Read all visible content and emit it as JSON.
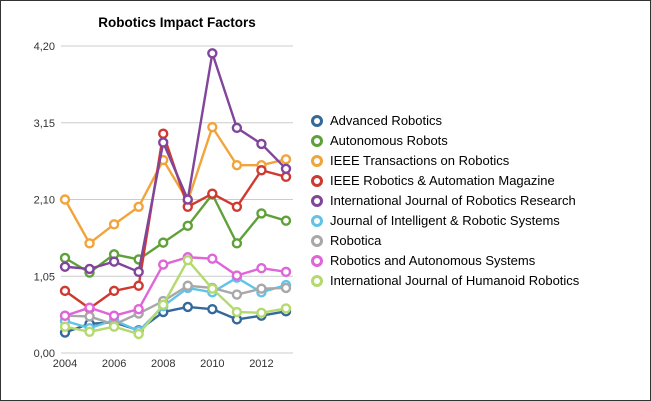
{
  "chart_data": {
    "type": "line",
    "title": "Robotics Impact Factors",
    "xlabel": "",
    "ylabel": "",
    "x": [
      2004,
      2005,
      2006,
      2007,
      2008,
      2009,
      2010,
      2011,
      2012,
      2013
    ],
    "x_ticks": [
      2004,
      2006,
      2008,
      2010,
      2012
    ],
    "x_tick_labels": [
      "2004",
      "2006",
      "2008",
      "2010",
      "2012"
    ],
    "y_ticks": [
      0.0,
      1.05,
      2.1,
      3.15,
      4.2
    ],
    "y_tick_labels": [
      "0,00",
      "1,05",
      "2,10",
      "3,15",
      "4,20"
    ],
    "ylim": [
      0,
      4.2
    ],
    "grid": "horizontal",
    "legend_position": "right",
    "marker_style": "ring",
    "axis_color": "#333333",
    "gridline_color": "#cccccc",
    "series": [
      {
        "name": "Advanced Robotics",
        "color": "#34699A",
        "values": [
          0.28,
          0.4,
          0.42,
          0.31,
          0.56,
          0.63,
          0.6,
          0.46,
          0.51,
          0.57
        ]
      },
      {
        "name": "Autonomous Robots",
        "color": "#5FA138",
        "values": [
          1.3,
          1.1,
          1.35,
          1.28,
          1.51,
          1.74,
          2.17,
          1.5,
          1.91,
          1.81
        ]
      },
      {
        "name": "IEEE Transactions on Robotics",
        "color": "#F2A43C",
        "values": [
          2.1,
          1.5,
          1.76,
          2.0,
          2.64,
          2.08,
          3.09,
          2.57,
          2.57,
          2.65
        ]
      },
      {
        "name": "IEEE Robotics & Automation Magazine",
        "color": "#CE3A32",
        "values": [
          0.85,
          0.61,
          0.85,
          0.92,
          3.0,
          2.0,
          2.18,
          2.0,
          2.5,
          2.41
        ]
      },
      {
        "name": "International Journal of Robotics Research",
        "color": "#81459B",
        "values": [
          1.18,
          1.15,
          1.25,
          1.11,
          2.88,
          2.1,
          4.1,
          3.08,
          2.86,
          2.52
        ]
      },
      {
        "name": "Journal of Intelligent & Robotic Systems",
        "color": "#63C3E6",
        "values": [
          0.44,
          0.34,
          0.45,
          0.3,
          0.64,
          0.89,
          0.83,
          1.03,
          0.83,
          0.93
        ]
      },
      {
        "name": "Robotica",
        "color": "#A8A8A8",
        "values": [
          0.51,
          0.5,
          0.39,
          0.54,
          0.71,
          0.92,
          0.89,
          0.8,
          0.88,
          0.89
        ]
      },
      {
        "name": "Robotics and Autonomous Systems",
        "color": "#DE66D8",
        "values": [
          0.51,
          0.62,
          0.51,
          0.6,
          1.21,
          1.31,
          1.29,
          1.06,
          1.16,
          1.11
        ]
      },
      {
        "name": "International Journal of Humanoid Robotics",
        "color": "#B4D96E",
        "values": [
          0.36,
          0.29,
          0.36,
          0.26,
          0.66,
          1.27,
          0.88,
          0.56,
          0.55,
          0.61
        ]
      }
    ]
  }
}
